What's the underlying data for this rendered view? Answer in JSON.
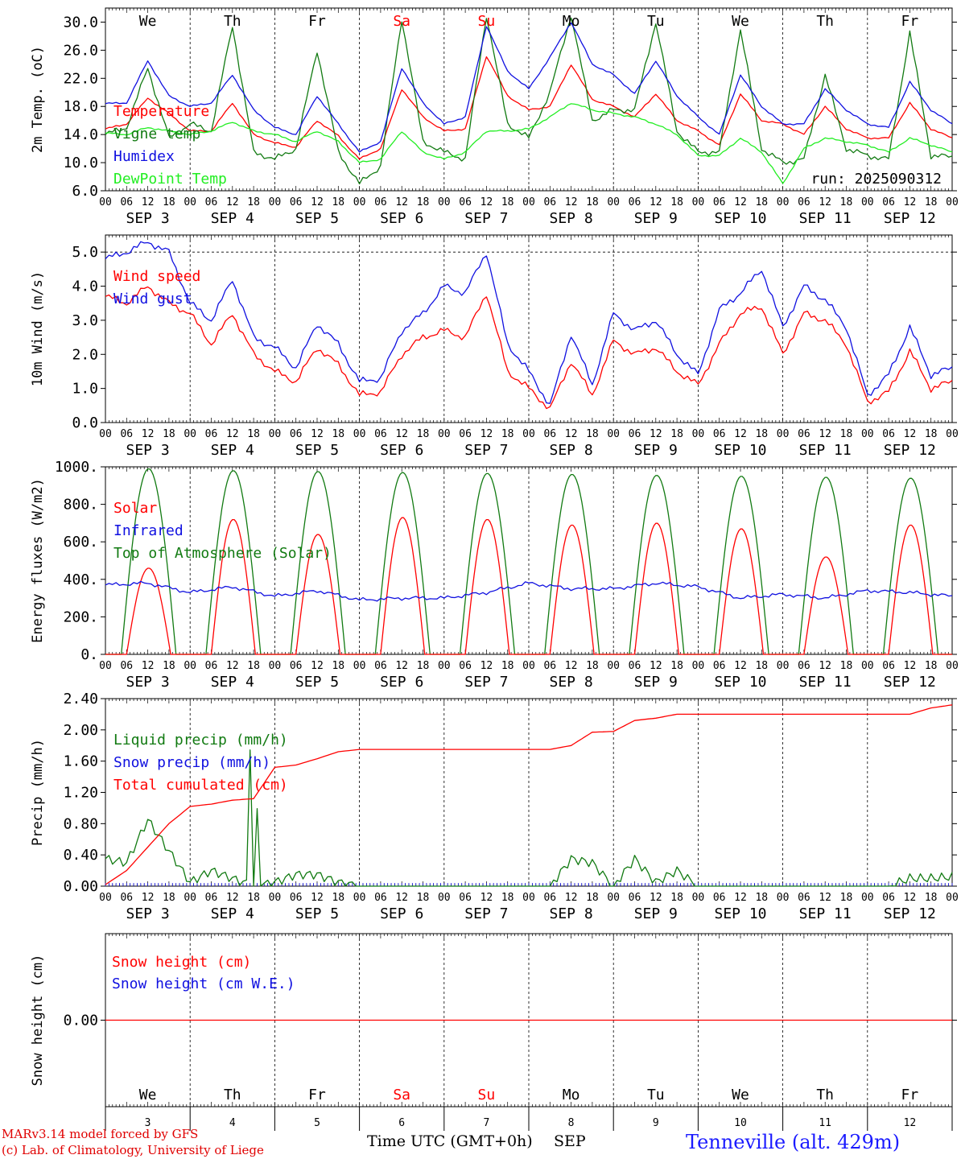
{
  "colors": {
    "temperature": "#ff0000",
    "vigne": "#117a11",
    "humidex": "#1010e0",
    "dewpoint": "#22ee22",
    "wind": "#ff0000",
    "gust": "#1010e0",
    "solar": "#ff0000",
    "infrared": "#1010e0",
    "toa": "#117a11",
    "liquid": "#117a11",
    "snow": "#1010e0",
    "cumulated": "#ff0000",
    "snow_h": "#ff0000",
    "weekend": "#ff0000",
    "weekday": "#000000"
  },
  "days": {
    "names": [
      "We",
      "Th",
      "Fr",
      "Sa",
      "Su",
      "Mo",
      "Tu",
      "We",
      "Th",
      "Fr"
    ],
    "weekend": [
      false,
      false,
      false,
      true,
      true,
      false,
      false,
      false,
      false,
      false
    ],
    "numbers": [
      "3",
      "4",
      "5",
      "6",
      "7",
      "8",
      "9",
      "10",
      "11",
      "12"
    ],
    "date_labels": [
      "SEP  3",
      "SEP  4",
      "SEP  5",
      "SEP  6",
      "SEP  7",
      "SEP  8",
      "SEP  9",
      "SEP 10",
      "SEP 11",
      "SEP 12"
    ],
    "hour_labels": [
      "00",
      "06",
      "12",
      "18"
    ],
    "final_hour": "00"
  },
  "footer": {
    "model": "MARv3.14 model forced by GFS",
    "credit": "(c) Lab. of Climatology, University of Liege",
    "xtitle": "Time UTC (GMT+0h)",
    "month": "SEP",
    "station": "Tenneville (alt. 429m)"
  },
  "chart_data": [
    {
      "type": "line",
      "ylabel": "2m Temp. (oC)",
      "ylim": [
        6,
        32
      ],
      "yticks": [
        "6.0",
        "10.0",
        "14.0",
        "18.0",
        "22.0",
        "26.0",
        "30.0"
      ],
      "annotation": "run: 2025090312",
      "x": [
        0,
        6,
        12,
        18,
        24,
        30,
        36,
        42,
        48,
        54,
        60,
        66,
        72,
        78,
        84,
        90,
        96,
        102,
        108,
        114,
        120,
        126,
        132,
        138,
        144,
        150,
        156,
        162,
        168,
        174,
        180,
        186,
        192,
        198,
        204,
        210,
        216,
        222,
        228,
        234,
        240
      ],
      "series": [
        {
          "name": "Temperature",
          "color_key": "temperature",
          "values": [
            14.8,
            15.5,
            19.2,
            17.0,
            14.5,
            14.5,
            18.5,
            14.0,
            12.8,
            12.2,
            16.0,
            13.8,
            10.5,
            12.0,
            20.5,
            16.5,
            14.5,
            14.8,
            25.2,
            19.5,
            17.5,
            18.0,
            24.0,
            19.0,
            18.0,
            16.5,
            19.8,
            16.0,
            14.5,
            12.5,
            19.8,
            16.0,
            15.5,
            14.0,
            18.0,
            14.8,
            13.5,
            13.5,
            18.5,
            14.8,
            13.5
          ]
        },
        {
          "name": "Vigne temp",
          "color_key": "vigne",
          "values": [
            14.0,
            15.0,
            23.5,
            13.5,
            15.5,
            14.5,
            29.5,
            11.5,
            10.5,
            12.0,
            26.0,
            11.5,
            7.0,
            9.5,
            30.5,
            13.0,
            11.5,
            10.5,
            31.0,
            15.5,
            13.5,
            20.0,
            31.0,
            16.0,
            17.5,
            17.5,
            30.0,
            14.5,
            11.5,
            11.5,
            29.0,
            12.0,
            10.0,
            10.5,
            22.5,
            12.0,
            11.0,
            10.5,
            28.5,
            11.0,
            10.8
          ]
        },
        {
          "name": "Humidex",
          "color_key": "humidex",
          "values": [
            18.4,
            18.5,
            24.5,
            19.5,
            18.0,
            18.5,
            22.5,
            17.5,
            15.0,
            14.0,
            19.5,
            15.5,
            11.5,
            13.0,
            23.5,
            18.5,
            15.5,
            16.5,
            29.5,
            23.0,
            20.5,
            25.0,
            30.0,
            24.0,
            22.5,
            19.8,
            24.5,
            19.5,
            16.5,
            14.0,
            22.5,
            18.0,
            15.5,
            15.5,
            20.5,
            17.5,
            15.5,
            15.0,
            21.5,
            17.5,
            15.5
          ]
        },
        {
          "name": "DewPoint Temp",
          "color_key": "dewpoint",
          "values": [
            14.2,
            14.0,
            15.0,
            14.5,
            14.0,
            14.5,
            15.8,
            14.5,
            14.0,
            13.0,
            14.5,
            13.0,
            10.0,
            10.5,
            14.5,
            11.5,
            10.5,
            11.5,
            14.5,
            14.5,
            14.8,
            16.5,
            18.5,
            17.5,
            17.0,
            16.5,
            15.5,
            14.0,
            11.0,
            11.0,
            13.5,
            11.5,
            7.0,
            12.0,
            13.5,
            13.0,
            12.5,
            11.5,
            13.5,
            12.5,
            11.5
          ]
        }
      ]
    },
    {
      "type": "line",
      "ylabel": "10m Wind (m/s)",
      "ylim": [
        0,
        5.5
      ],
      "yticks": [
        "0.0",
        "1.0",
        "2.0",
        "3.0",
        "4.0",
        "5.0"
      ],
      "hline": 5.0,
      "x": [
        0,
        6,
        12,
        18,
        24,
        30,
        36,
        42,
        48,
        54,
        60,
        66,
        72,
        78,
        84,
        90,
        96,
        102,
        108,
        114,
        120,
        126,
        132,
        138,
        144,
        150,
        156,
        162,
        168,
        174,
        180,
        186,
        192,
        198,
        204,
        210,
        216,
        222,
        228,
        234,
        240
      ],
      "series": [
        {
          "name": "Wind speed",
          "color_key": "wind",
          "values": [
            3.7,
            3.5,
            4.0,
            3.5,
            3.2,
            2.3,
            3.2,
            2.0,
            1.5,
            1.2,
            2.2,
            1.7,
            0.8,
            0.9,
            2.0,
            2.5,
            2.7,
            2.5,
            3.8,
            1.5,
            1.0,
            0.4,
            1.8,
            0.8,
            2.4,
            2.0,
            2.2,
            1.5,
            1.1,
            2.3,
            3.2,
            3.4,
            2.0,
            3.2,
            3.0,
            2.3,
            0.6,
            0.9,
            2.1,
            1.0,
            1.2
          ]
        },
        {
          "name": "Wind gust",
          "color_key": "gust",
          "values": [
            4.8,
            5.0,
            5.3,
            5.0,
            3.5,
            3.0,
            4.2,
            2.5,
            2.2,
            1.6,
            2.9,
            2.3,
            1.2,
            1.3,
            2.7,
            3.2,
            4.0,
            3.8,
            5.0,
            2.3,
            1.5,
            0.5,
            2.6,
            1.1,
            3.2,
            2.7,
            3.0,
            2.0,
            1.4,
            3.3,
            3.8,
            4.5,
            2.8,
            4.0,
            3.6,
            2.8,
            0.8,
            1.4,
            2.8,
            1.4,
            1.6
          ]
        }
      ]
    },
    {
      "type": "line",
      "ylabel": "Energy fluxes (W/m2)",
      "ylim": [
        0,
        1000
      ],
      "yticks": [
        "0.",
        "200.",
        "400.",
        "600.",
        "800.",
        "1000."
      ],
      "series": [
        {
          "name": "Solar",
          "color_key": "solar",
          "peaks": [
            460,
            720,
            640,
            730,
            720,
            690,
            700,
            670,
            520,
            690
          ]
        },
        {
          "name": "Infrared",
          "color_key": "infrared",
          "x": [
            0,
            12,
            24,
            36,
            48,
            60,
            72,
            84,
            96,
            108,
            120,
            132,
            144,
            156,
            168,
            180,
            192,
            204,
            216,
            228,
            240
          ],
          "values": [
            370,
            380,
            330,
            360,
            310,
            340,
            290,
            300,
            300,
            330,
            380,
            350,
            350,
            380,
            360,
            300,
            320,
            300,
            340,
            330,
            310
          ]
        },
        {
          "name": "Top of Atmosphere (Solar)",
          "color_key": "toa",
          "peaks": [
            990,
            980,
            975,
            970,
            965,
            960,
            955,
            950,
            945,
            940
          ]
        }
      ]
    },
    {
      "type": "line",
      "ylabel": "Precip (mm/h)",
      "ylim": [
        0,
        2.4
      ],
      "yticks": [
        "0.00",
        "0.40",
        "0.80",
        "1.20",
        "1.60",
        "2.00",
        "2.40"
      ],
      "x": [
        0,
        6,
        12,
        18,
        24,
        30,
        36,
        42,
        48,
        54,
        60,
        66,
        72,
        78,
        84,
        90,
        96,
        102,
        108,
        114,
        120,
        126,
        132,
        138,
        144,
        150,
        156,
        162,
        168,
        174,
        180,
        186,
        192,
        198,
        204,
        210,
        216,
        222,
        228,
        234,
        240
      ],
      "series": [
        {
          "name": "Liquid precip (mm/h)",
          "color_key": "liquid",
          "values": [
            0.35,
            0.3,
            0.85,
            0.45,
            0.05,
            0.2,
            0.1,
            0.0,
            0.05,
            0.15,
            0.15,
            0.05,
            0.0,
            0.0,
            0.0,
            0.0,
            0.0,
            0.0,
            0.0,
            0.0,
            0.0,
            0.0,
            0.35,
            0.3,
            0.0,
            0.35,
            0.05,
            0.2,
            0.0,
            0.0,
            0.0,
            0.0,
            0.0,
            0.0,
            0.0,
            0.0,
            0.0,
            0.0,
            0.1,
            0.1,
            0.12
          ]
        },
        {
          "name": "Snow precip (mm/h)",
          "color_key": "snow",
          "values": [
            0,
            0,
            0,
            0,
            0,
            0,
            0,
            0,
            0,
            0,
            0,
            0,
            0,
            0,
            0,
            0,
            0,
            0,
            0,
            0,
            0,
            0,
            0,
            0,
            0,
            0,
            0,
            0,
            0,
            0,
            0,
            0,
            0,
            0,
            0,
            0,
            0,
            0,
            0,
            0,
            0
          ]
        },
        {
          "name": "Total cumulated (cm)",
          "color_key": "cumulated",
          "values": [
            0.02,
            0.2,
            0.5,
            0.8,
            1.02,
            1.05,
            1.1,
            1.12,
            1.52,
            1.55,
            1.63,
            1.72,
            1.75,
            1.75,
            1.75,
            1.75,
            1.75,
            1.75,
            1.75,
            1.75,
            1.75,
            1.75,
            1.8,
            1.97,
            1.98,
            2.12,
            2.15,
            2.2,
            2.2,
            2.2,
            2.2,
            2.2,
            2.2,
            2.2,
            2.2,
            2.2,
            2.2,
            2.2,
            2.2,
            2.28,
            2.32
          ]
        }
      ],
      "spikes": [
        {
          "x": 41,
          "value": 1.8
        },
        {
          "x": 43,
          "value": 0.95
        }
      ]
    },
    {
      "type": "line",
      "ylabel": "Snow height (cm)",
      "ylim": [
        -1,
        1
      ],
      "yticks": [
        "0.00"
      ],
      "series": [
        {
          "name": "Snow height (cm)",
          "color_key": "snow_h",
          "value": 0.0
        },
        {
          "name": "Snow height (cm W.E.)",
          "color_key": "snow",
          "value": 0.0
        }
      ]
    }
  ]
}
